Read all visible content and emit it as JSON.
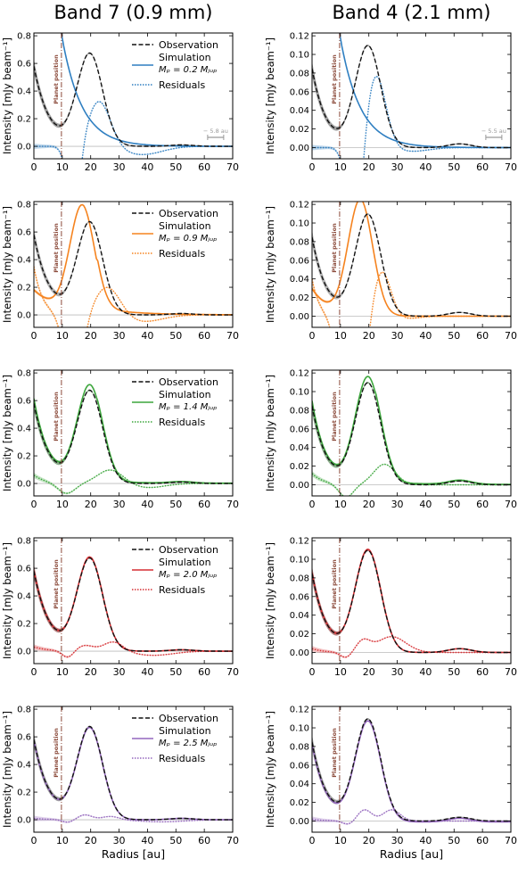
{
  "columns": [
    {
      "title": "Band 7 (0.9 mm)",
      "ylim": [
        -0.09,
        0.82
      ],
      "yticks": [
        "0.0",
        "0.2",
        "0.4",
        "0.6",
        "0.8"
      ],
      "ytick_vals": [
        0,
        0.2,
        0.4,
        0.6,
        0.8
      ],
      "scalebar": "5.8 au"
    },
    {
      "title": "Band 4 (2.1 mm)",
      "ylim": [
        -0.012,
        0.123
      ],
      "yticks": [
        "0.00",
        "0.02",
        "0.04",
        "0.06",
        "0.08",
        "0.10",
        "0.12"
      ],
      "ytick_vals": [
        0,
        0.02,
        0.04,
        0.06,
        0.08,
        0.1,
        0.12
      ],
      "scalebar": "5.5 au"
    }
  ],
  "ylabel": "Intensity [mJy beam⁻¹]",
  "xlabel": "Radius  [au]",
  "xticks": [
    "0",
    "10",
    "20",
    "30",
    "40",
    "50",
    "60",
    "70"
  ],
  "planet_label": "Planet position",
  "legend": {
    "observation": "Observation",
    "simulation": "Simulation",
    "residuals": "Residuals"
  },
  "rows": [
    {
      "mass_label": "Mₚ = 0.2 Mⱼᵤₚ",
      "mass": "0.2",
      "color": "#2f7fc1",
      "shade": "#555555"
    },
    {
      "mass_label": "Mₚ = 0.9 Mⱼᵤₚ",
      "mass": "0.9",
      "color": "#f5831f",
      "shade": "#777777"
    },
    {
      "mass_label": "Mₚ = 1.4 Mⱼᵤₚ",
      "mass": "1.4",
      "color": "#3ca63c",
      "shade": "#2e6b2e"
    },
    {
      "mass_label": "Mₚ = 2.0 Mⱼᵤₚ",
      "mass": "2.0",
      "color": "#d62f33",
      "shade": "#7a1e1e"
    },
    {
      "mass_label": "Mₚ = 2.5 Mⱼᵤₚ",
      "mass": "2.5",
      "color": "#9467bd",
      "shade": "#555555"
    }
  ],
  "chart_data": [
    {
      "type": "line",
      "panel": "Band 7, 0.2 MJup",
      "x": [
        0,
        5,
        10,
        15,
        20,
        25,
        30,
        35,
        40,
        50,
        60,
        70
      ],
      "series": [
        {
          "name": "Observation",
          "values": [
            0.55,
            0.25,
            0.12,
            0.45,
            0.66,
            0.48,
            0.2,
            0.07,
            0.02,
            0.0,
            0.0,
            0.0
          ]
        },
        {
          "name": "Simulation",
          "values": [
            null,
            null,
            0.82,
            0.6,
            0.42,
            0.28,
            0.17,
            0.1,
            0.06,
            0.02,
            0.01,
            0.0
          ]
        },
        {
          "name": "Residuals",
          "values": [
            null,
            null,
            null,
            -0.05,
            0.2,
            0.32,
            0.12,
            -0.03,
            -0.05,
            -0.02,
            -0.01,
            0.0
          ]
        }
      ]
    },
    {
      "type": "line",
      "panel": "Band 4, 0.2 MJup",
      "x": [
        0,
        5,
        10,
        15,
        20,
        25,
        30,
        35,
        40,
        50,
        60,
        70
      ],
      "series": [
        {
          "name": "Observation",
          "values": [
            0.07,
            0.04,
            0.02,
            0.07,
            0.108,
            0.08,
            0.035,
            0.01,
            0.003,
            0.0,
            0.0,
            0.0
          ]
        },
        {
          "name": "Simulation",
          "values": [
            null,
            null,
            0.123,
            0.09,
            0.05,
            0.03,
            0.015,
            0.008,
            0.004,
            0.001,
            0.0,
            0.0
          ]
        },
        {
          "name": "Residuals",
          "values": [
            null,
            null,
            null,
            -0.01,
            0.04,
            0.075,
            0.025,
            0.005,
            0.001,
            0.0,
            0.0,
            0.0
          ]
        }
      ]
    }
  ]
}
